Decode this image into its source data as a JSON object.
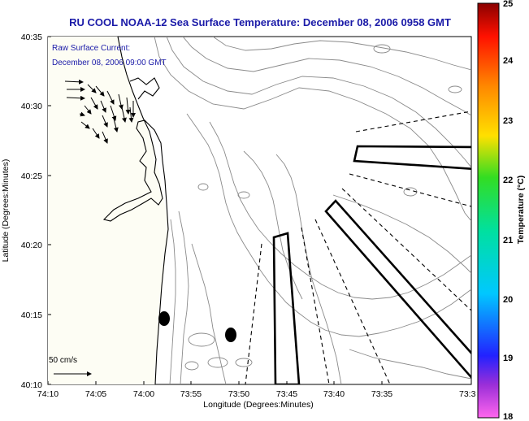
{
  "title": "RU COOL  NOAA-12  Sea Surface Temperature:  December 08, 2006 0958 GMT",
  "subtitle": {
    "line1": "Raw Surface Current:",
    "line2": "December 08, 2006 09:00 GMT"
  },
  "axes": {
    "xlabel": "Longitude (Degrees:Minutes)",
    "ylabel": "Latitude (Degrees:Minutes)",
    "xticks": [
      "74:10",
      "74:05",
      "74:00",
      "73:55",
      "73:50",
      "73:45",
      "73:40",
      "73:35",
      "73:3"
    ],
    "yticks": [
      "40:35",
      "40:30",
      "40:25",
      "40:20",
      "40:15",
      "40:10"
    ]
  },
  "colorbar": {
    "label": "Temperature (°C)",
    "ticks": [
      "25",
      "24",
      "23",
      "22",
      "21",
      "20",
      "19",
      "18"
    ],
    "min": 18,
    "max": 25
  },
  "scale_arrow": {
    "label": "50 cm/s"
  },
  "colors": {
    "title": "#1a1aa8",
    "land": "#fdfdf4",
    "contour": "#8a8a8a"
  }
}
